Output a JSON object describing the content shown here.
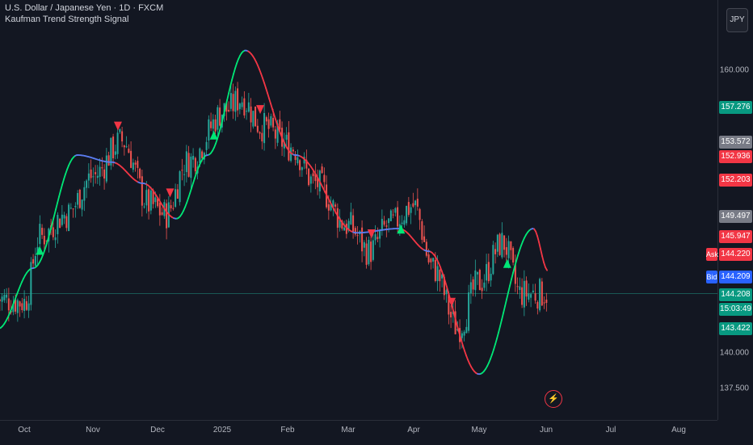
{
  "header": {
    "symbol_title": "U.S. Dollar / Japanese Yen · 1D · FXCM",
    "indicator_name": "Kaufman Trend Strength Signal"
  },
  "currency_button": {
    "label": "JPY"
  },
  "flash_icon": {
    "glyph": "⚡",
    "icon": "lightning-icon"
  },
  "colors": {
    "background": "#131722",
    "bull": "#26a69a",
    "bear": "#ef5350",
    "line_up": "#00e676",
    "line_down": "#f23645",
    "line_neutral": "#5b7cf0",
    "marker_up": "#00e676",
    "marker_down": "#f23645"
  },
  "price_axis": {
    "ticks": [
      "160.000",
      "140.000",
      "137.500"
    ],
    "tags": [
      {
        "value": "157.276",
        "bg": "#089981"
      },
      {
        "value": "153.572",
        "bg": "#787b86"
      },
      {
        "value": "152.936",
        "bg": "#f23645"
      },
      {
        "value": "152.203",
        "bg": "#f23645"
      },
      {
        "value": "149.497",
        "bg": "#787b86"
      },
      {
        "value": "145.947",
        "bg": "#f23645"
      },
      {
        "value": "144.220",
        "bg": "#f23645",
        "badge": "Ask",
        "badge_bg": "#f23645"
      },
      {
        "value": "144.209",
        "bg": "#2962ff",
        "badge": "Bid",
        "badge_bg": "#2962ff"
      },
      {
        "value": "144.208",
        "bg": "#089981"
      },
      {
        "value": "15:03:49",
        "bg": "#089981"
      },
      {
        "value": "143.422",
        "bg": "#089981"
      }
    ]
  },
  "time_axis": {
    "labels": [
      "Oct",
      "Nov",
      "Dec",
      "2025",
      "Feb",
      "Mar",
      "Apr",
      "May",
      "Jun",
      "Jul",
      "Aug"
    ]
  },
  "chart_data": {
    "type": "candlestick",
    "symbol": "U.S. Dollar / Japanese Yen",
    "interval": "1D",
    "source": "FXCM",
    "y_range": [
      136.8,
      163.5
    ],
    "last_price": 144.208,
    "x": [
      "Oct",
      "Nov",
      "Dec",
      "2025",
      "Feb",
      "Mar",
      "Apr",
      "May",
      "Jun",
      "Jul",
      "Aug"
    ],
    "close_anchors": [
      {
        "date": "Sep 20",
        "close": 143.8
      },
      {
        "date": "Oct 1",
        "close": 143.6
      },
      {
        "date": "Oct 8",
        "close": 148.2
      },
      {
        "date": "Oct 20",
        "close": 149.8
      },
      {
        "date": "Nov 1",
        "close": 152.5
      },
      {
        "date": "Nov 15",
        "close": 155.0
      },
      {
        "date": "Nov 28",
        "close": 150.5
      },
      {
        "date": "Dec 5",
        "close": 149.8
      },
      {
        "date": "Dec 15",
        "close": 153.5
      },
      {
        "date": "Jan 3",
        "close": 157.2
      },
      {
        "date": "Jan 10",
        "close": 158.0
      },
      {
        "date": "Jan 20",
        "close": 156.0
      },
      {
        "date": "Feb 3",
        "close": 154.6
      },
      {
        "date": "Feb 15",
        "close": 152.0
      },
      {
        "date": "Mar 1",
        "close": 149.0
      },
      {
        "date": "Mar 11",
        "close": 147.2
      },
      {
        "date": "Mar 20",
        "close": 149.0
      },
      {
        "date": "Apr 1",
        "close": 150.4
      },
      {
        "date": "Apr 10",
        "close": 146.0
      },
      {
        "date": "Apr 22",
        "close": 141.8
      },
      {
        "date": "May 1",
        "close": 145.0
      },
      {
        "date": "May 12",
        "close": 147.8
      },
      {
        "date": "May 20",
        "close": 144.2
      },
      {
        "date": "Jun 2",
        "close": 144.2
      }
    ],
    "indicator": {
      "name": "Kaufman Trend Strength Signal",
      "line_anchors": [
        {
          "date": "Sep 20",
          "value": 141.7
        },
        {
          "date": "Oct 5",
          "value": 146.0
        },
        {
          "date": "Oct 25",
          "value": 154.0
        },
        {
          "date": "Nov 10",
          "value": 153.5
        },
        {
          "date": "Nov 25",
          "value": 152.0
        },
        {
          "date": "Dec 10",
          "value": 149.5
        },
        {
          "date": "Dec 25",
          "value": 154.0
        },
        {
          "date": "Jan 12",
          "value": 161.4
        },
        {
          "date": "Feb 5",
          "value": 154.0
        },
        {
          "date": "Mar 5",
          "value": 148.5
        },
        {
          "date": "Mar 25",
          "value": 148.8
        },
        {
          "date": "Apr 8",
          "value": 147.2
        },
        {
          "date": "May 1",
          "value": 138.5
        },
        {
          "date": "May 26",
          "value": 148.8
        },
        {
          "date": "Jun 2",
          "value": 145.8
        }
      ],
      "up_signals": [
        "Oct 8",
        "Dec 28",
        "Mar 26",
        "May 14"
      ],
      "down_signals": [
        "Nov 13",
        "Dec 7",
        "Jan 19",
        "Mar 12",
        "Apr 19"
      ]
    }
  }
}
